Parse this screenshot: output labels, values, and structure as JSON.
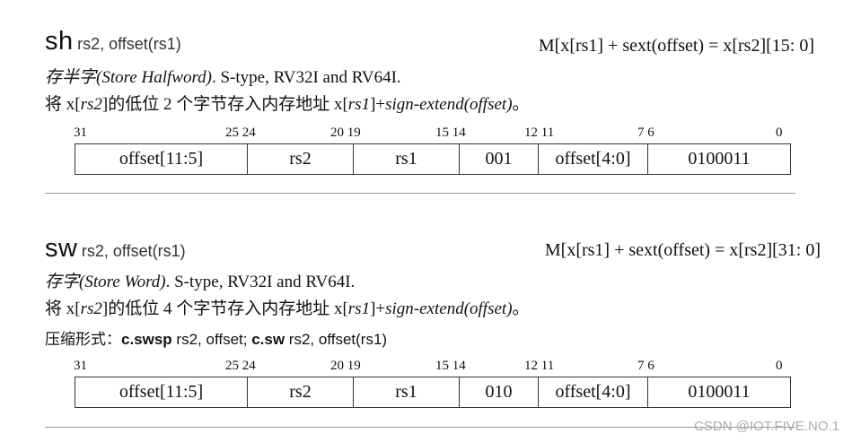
{
  "sections": [
    {
      "mnemonic": "sh",
      "operands": "rs2, offset(rs1)",
      "formula": "M[x[rs1] + sext(offset) = x[rs2][15: 0]",
      "desc_cn": "存半字",
      "desc_en": "(Store Halfword)",
      "desc_rest": ". S-type, RV32I and RV64I.",
      "detail_a": "将 x[",
      "detail_rs2": "rs2",
      "detail_b": "]的低位 2 个字节存入内存地址 x[",
      "detail_rs1": "rs1",
      "detail_c": "]+",
      "detail_sext": "sign-extend(offset)",
      "detail_end": "。",
      "bit_labels": [
        "31",
        "25 24",
        "20 19",
        "15 14",
        "12 11",
        "7 6",
        "0"
      ],
      "fields": [
        "offset[11:5]",
        "rs2",
        "rs1",
        "001",
        "offset[4:0]",
        "0100011"
      ]
    },
    {
      "mnemonic": "sw",
      "operands": "rs2, offset(rs1)",
      "formula": "M[x[rs1] + sext(offset) = x[rs2][31: 0]",
      "desc_cn": "存字",
      "desc_en": "(Store Word)",
      "desc_rest": ". S-type, RV32I and RV64I.",
      "detail_a": "将 x[",
      "detail_rs2": "rs2",
      "detail_b": "]的低位 4 个字节存入内存地址 x[",
      "detail_rs1": "rs1",
      "detail_c": "]+",
      "detail_sext": "sign-extend(offset)",
      "detail_end": "。",
      "compressed_label": "压缩形式：",
      "compressed_1": "c.swsp",
      "compressed_1_ops": " rs2, offset; ",
      "compressed_2": "c.sw",
      "compressed_2_ops": " rs2, offset(rs1)",
      "bit_labels": [
        "31",
        "25 24",
        "20 19",
        "15 14",
        "12 11",
        "7 6",
        "0"
      ],
      "fields": [
        "offset[11:5]",
        "rs2",
        "rs1",
        "010",
        "offset[4:0]",
        "0100011"
      ]
    }
  ],
  "watermark": "CSDN @IOT.FIVE.NO.1"
}
